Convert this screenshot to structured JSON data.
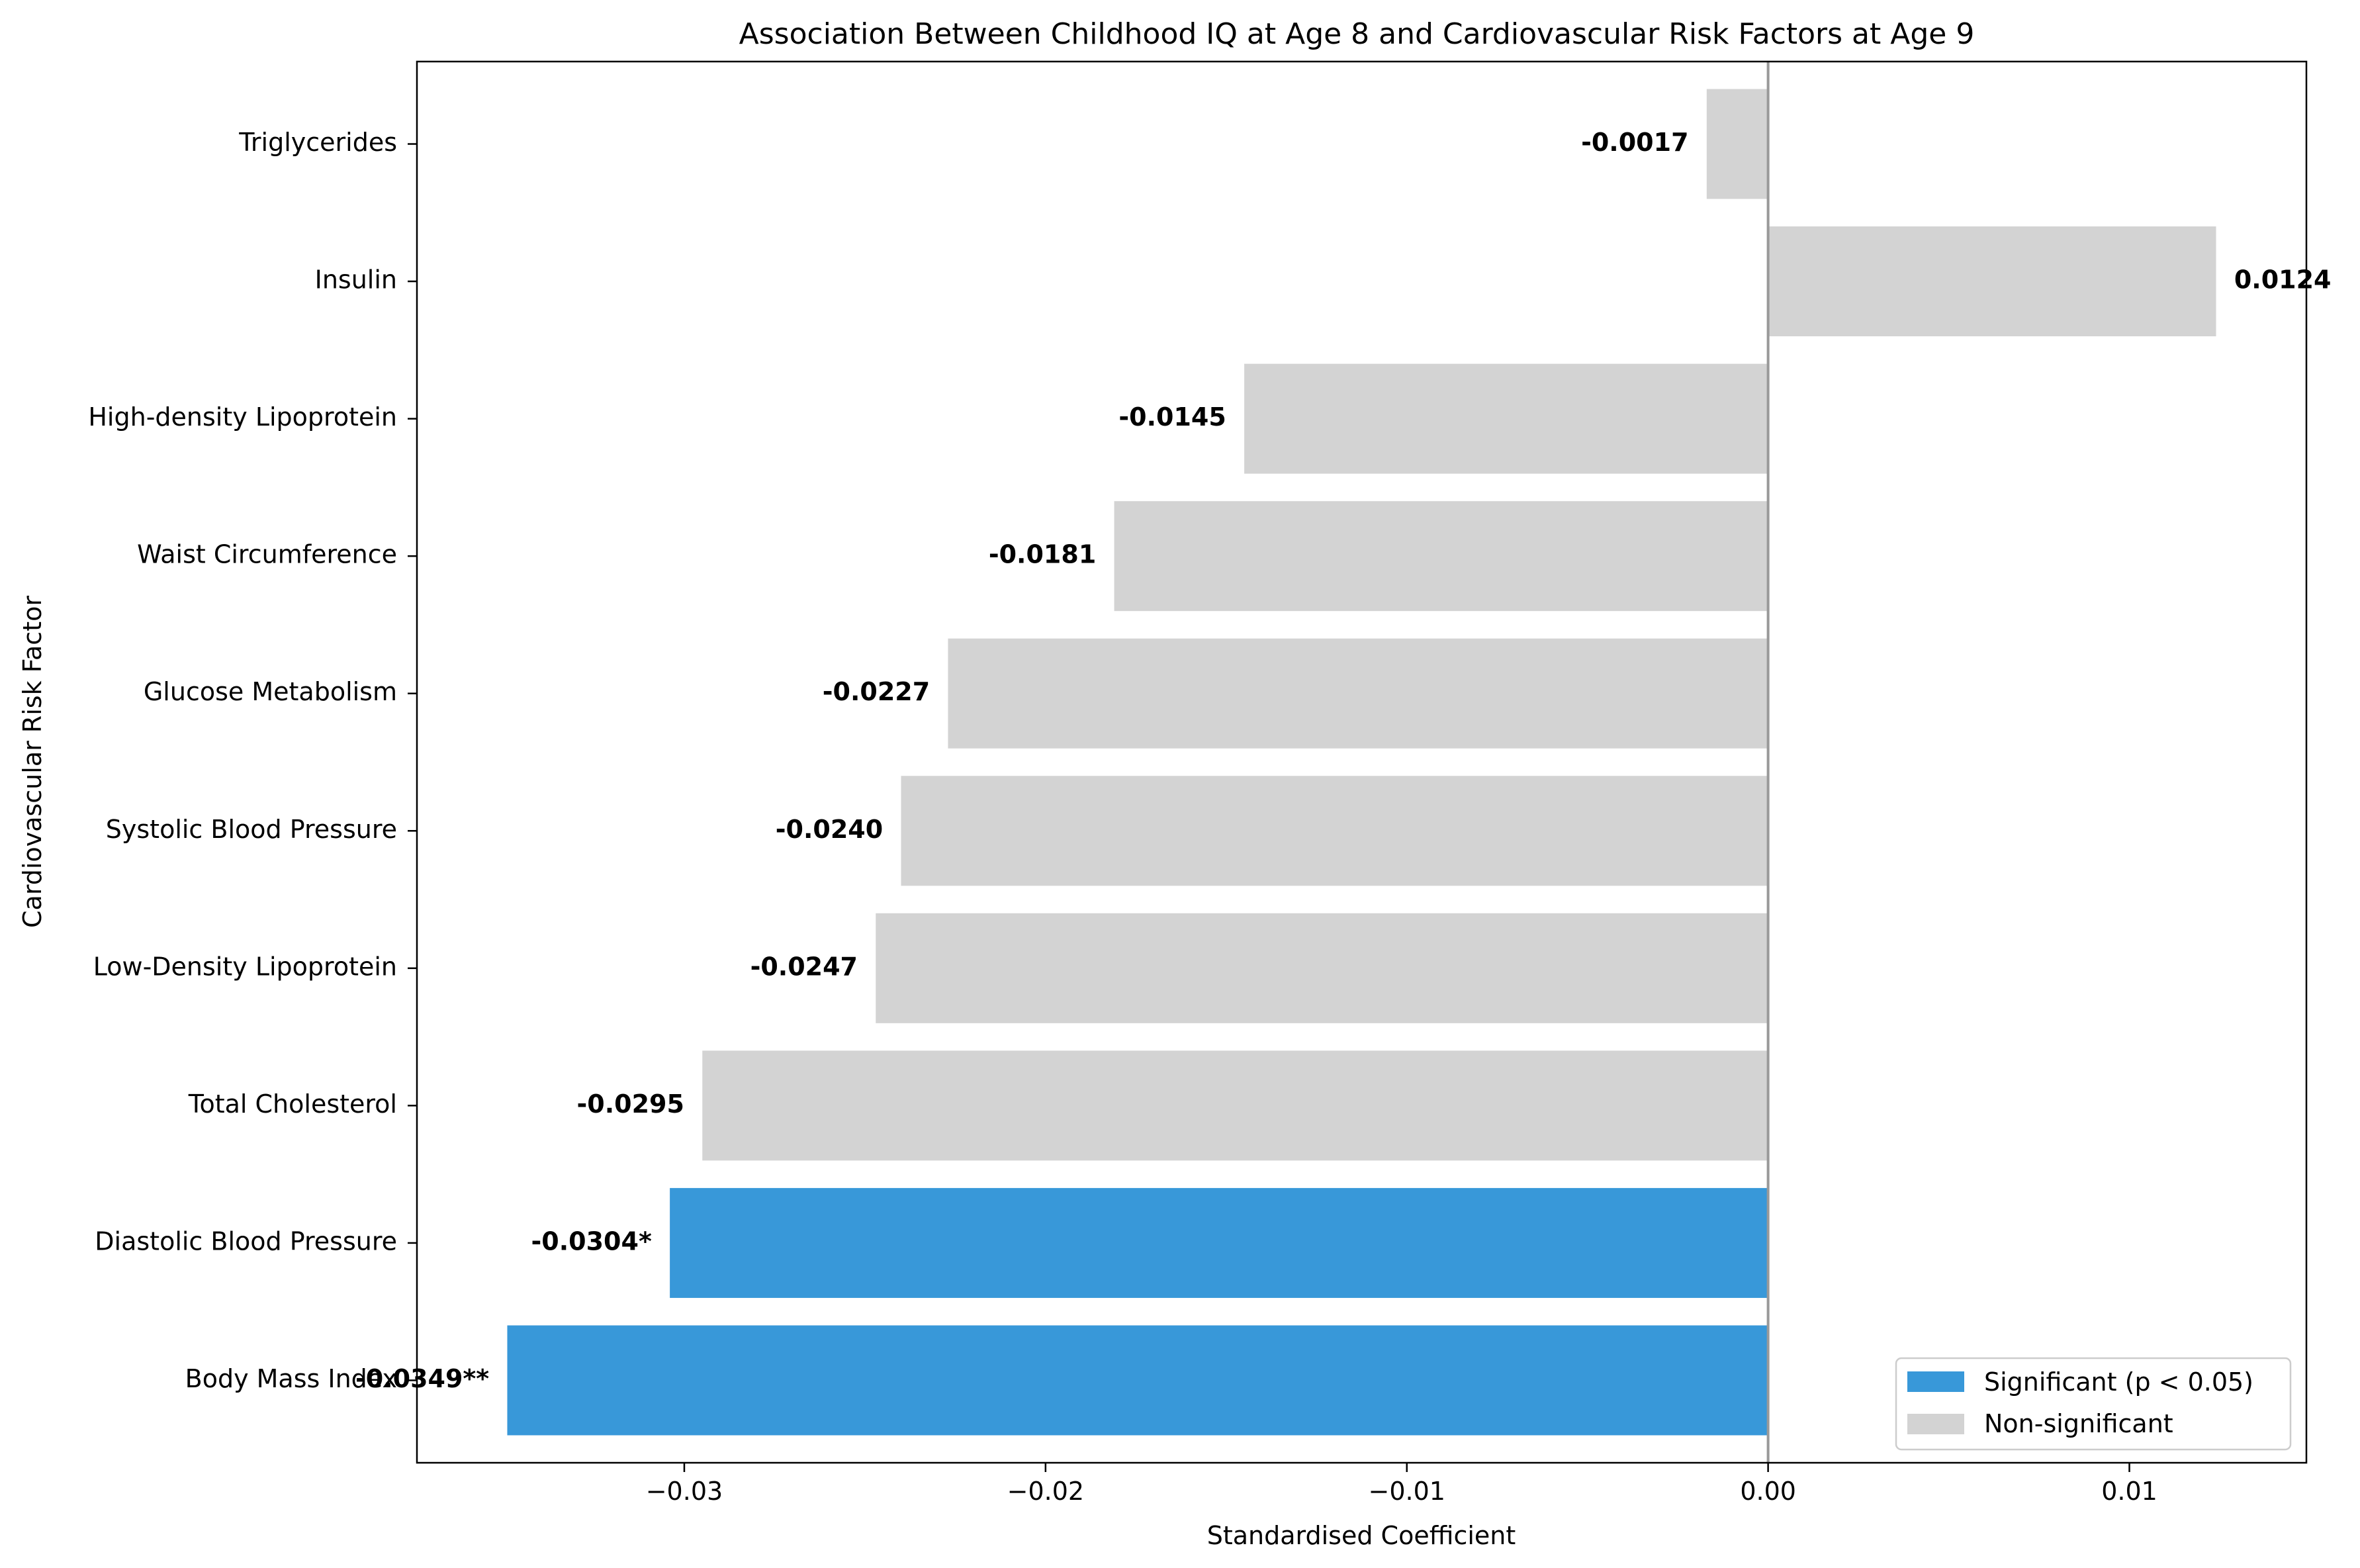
{
  "chart_data": {
    "type": "bar",
    "orientation": "horizontal",
    "title": "Association Between Childhood IQ at Age 8 and Cardiovascular Risk Factors at Age 9",
    "xlabel": "Standardised Coefficient",
    "ylabel": "Cardiovascular Risk Factor",
    "xlim": [
      -0.0374,
      0.0149
    ],
    "xticks": [
      -0.03,
      -0.02,
      -0.01,
      0.0,
      0.01
    ],
    "xtick_labels": [
      "−0.03",
      "−0.02",
      "−0.01",
      "0.00",
      "0.01"
    ],
    "grid": false,
    "legend_position": "lower-right",
    "colors": {
      "significant": "#3898d9",
      "nonsignificant": "#d3d3d3",
      "zero_line": "#999999"
    },
    "legend": [
      {
        "label": "Significant (p < 0.05)",
        "color": "#3898d9"
      },
      {
        "label": "Non-significant",
        "color": "#d3d3d3"
      }
    ],
    "categories": [
      "Triglycerides",
      "Insulin",
      "High-density Lipoprotein",
      "Waist Circumference",
      "Glucose Metabolism",
      "Systolic Blood Pressure",
      "Low-Density Lipoprotein",
      "Total Cholesterol",
      "Diastolic Blood Pressure",
      "Body Mass Index"
    ],
    "values": [
      -0.0017,
      0.0124,
      -0.0145,
      -0.0181,
      -0.0227,
      -0.024,
      -0.0247,
      -0.0295,
      -0.0304,
      -0.0349
    ],
    "value_labels": [
      "-0.0017",
      "0.0124",
      "-0.0145",
      "-0.0181",
      "-0.0227",
      "-0.0240",
      "-0.0247",
      "-0.0295",
      "-0.0304*",
      "-0.0349**"
    ],
    "significant": [
      false,
      false,
      false,
      false,
      false,
      false,
      false,
      false,
      true,
      true
    ]
  }
}
